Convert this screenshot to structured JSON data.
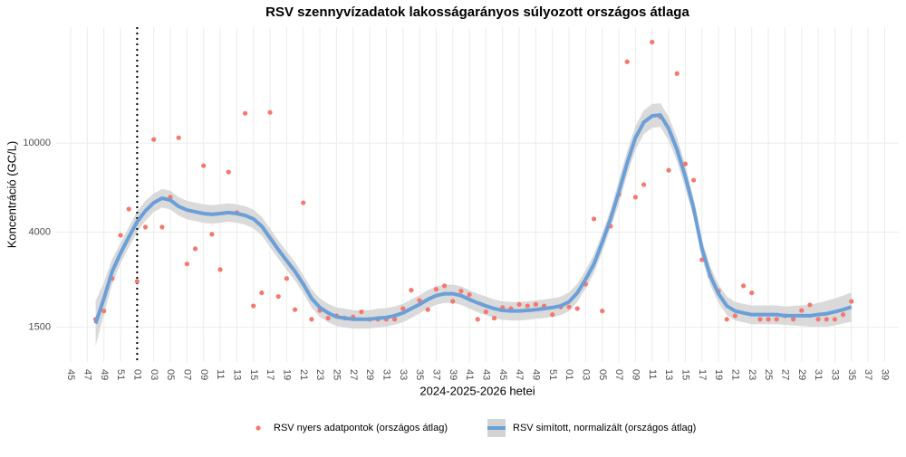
{
  "chart_data": {
    "type": "scatter-smooth",
    "title": "RSV szennyvízadatok lakosságarányos súlyozott országos átlaga",
    "x_label": "2024-2025-2026 hetei",
    "y_label": "Koncentráció (GC/L)",
    "y_scale": "log",
    "grid": true,
    "legend": "bottom",
    "reference_line_x": 8,
    "xlim": [
      -1.75,
      99.7
    ],
    "ylim": [
      1050,
      33000
    ],
    "yticks": [
      1500,
      4000,
      10000
    ],
    "xticks": [
      {
        "value": 0,
        "label": "45"
      },
      {
        "value": 2,
        "label": "47"
      },
      {
        "value": 4,
        "label": "49"
      },
      {
        "value": 6,
        "label": "51"
      },
      {
        "value": 8,
        "label": "01"
      },
      {
        "value": 10,
        "label": "03"
      },
      {
        "value": 12,
        "label": "05"
      },
      {
        "value": 14,
        "label": "07"
      },
      {
        "value": 16,
        "label": "09"
      },
      {
        "value": 18,
        "label": "11"
      },
      {
        "value": 20,
        "label": "13"
      },
      {
        "value": 22,
        "label": "15"
      },
      {
        "value": 24,
        "label": "17"
      },
      {
        "value": 26,
        "label": "19"
      },
      {
        "value": 28,
        "label": "21"
      },
      {
        "value": 30,
        "label": "23"
      },
      {
        "value": 32,
        "label": "25"
      },
      {
        "value": 34,
        "label": "27"
      },
      {
        "value": 36,
        "label": "29"
      },
      {
        "value": 38,
        "label": "31"
      },
      {
        "value": 40,
        "label": "33"
      },
      {
        "value": 42,
        "label": "35"
      },
      {
        "value": 44,
        "label": "37"
      },
      {
        "value": 46,
        "label": "39"
      },
      {
        "value": 48,
        "label": "41"
      },
      {
        "value": 50,
        "label": "43"
      },
      {
        "value": 52,
        "label": "45"
      },
      {
        "value": 54,
        "label": "47"
      },
      {
        "value": 56,
        "label": "49"
      },
      {
        "value": 58,
        "label": "51"
      },
      {
        "value": 60,
        "label": "01"
      },
      {
        "value": 62,
        "label": "03"
      },
      {
        "value": 64,
        "label": "05"
      },
      {
        "value": 66,
        "label": "07"
      },
      {
        "value": 68,
        "label": "09"
      },
      {
        "value": 70,
        "label": "11"
      },
      {
        "value": 72,
        "label": "13"
      },
      {
        "value": 74,
        "label": "15"
      },
      {
        "value": 76,
        "label": "17"
      },
      {
        "value": 78,
        "label": "19"
      },
      {
        "value": 80,
        "label": "21"
      },
      {
        "value": 82,
        "label": "23"
      },
      {
        "value": 84,
        "label": "25"
      },
      {
        "value": 86,
        "label": "27"
      },
      {
        "value": 88,
        "label": "29"
      },
      {
        "value": 90,
        "label": "31"
      },
      {
        "value": 92,
        "label": "33"
      },
      {
        "value": 94,
        "label": "35"
      },
      {
        "value": 96,
        "label": "37"
      },
      {
        "value": 98,
        "label": "39"
      }
    ],
    "x": [
      3,
      4,
      5,
      6,
      7,
      8,
      9,
      10,
      11,
      12,
      13,
      14,
      15,
      16,
      17,
      18,
      19,
      20,
      21,
      22,
      23,
      24,
      25,
      26,
      27,
      28,
      29,
      30,
      31,
      32,
      33,
      34,
      35,
      36,
      37,
      38,
      39,
      40,
      41,
      42,
      43,
      44,
      45,
      46,
      47,
      48,
      49,
      50,
      51,
      52,
      53,
      54,
      55,
      56,
      57,
      58,
      59,
      60,
      61,
      62,
      63,
      64,
      65,
      66,
      67,
      68,
      69,
      70,
      71,
      72,
      73,
      74,
      75,
      76,
      77,
      78,
      79,
      80,
      81,
      82,
      83,
      84,
      85,
      86,
      87,
      88,
      89,
      90,
      91,
      92,
      93,
      94
    ],
    "series": [
      {
        "name": "RSV nyers adatpontok (országos átlag)",
        "color": "#F8766D",
        "values": [
          1630,
          1775,
          2480,
          3870,
          5070,
          2410,
          4210,
          10380,
          4210,
          5730,
          10570,
          2880,
          3370,
          7920,
          3910,
          2720,
          7420,
          4890,
          13590,
          1870,
          2140,
          13720,
          2060,
          2480,
          1800,
          5410,
          1630,
          1785,
          1650,
          1690,
          1650,
          1670,
          1760,
          1630,
          1630,
          1630,
          1630,
          1820,
          2200,
          1980,
          1800,
          2220,
          2300,
          1960,
          2180,
          2100,
          1630,
          1760,
          1650,
          1840,
          1820,
          1900,
          1870,
          1900,
          1870,
          1710,
          1850,
          1850,
          1820,
          2340,
          4580,
          1775,
          4250,
          5890,
          23100,
          5730,
          6520,
          28300,
          13100,
          7560,
          20470,
          8070,
          6830,
          3010,
          2550,
          2180,
          1630,
          1690,
          2300,
          2140,
          1630,
          1630,
          1630,
          1690,
          1630,
          1785,
          1890,
          1630,
          1630,
          1630,
          1710,
          1960
        ]
      },
      {
        "name": "RSV simított, normalizált (országos átlag)",
        "color": "#6A9FD8",
        "band_color": "#d3d3d3",
        "values": [
          1560,
          2020,
          2670,
          3220,
          3800,
          4450,
          4980,
          5410,
          5670,
          5560,
          5210,
          5020,
          4930,
          4840,
          4800,
          4840,
          4890,
          4840,
          4750,
          4580,
          4250,
          3770,
          3340,
          2980,
          2670,
          2340,
          2020,
          1840,
          1740,
          1670,
          1650,
          1630,
          1630,
          1630,
          1650,
          1660,
          1690,
          1740,
          1820,
          1900,
          2000,
          2080,
          2120,
          2120,
          2080,
          2000,
          1930,
          1870,
          1820,
          1785,
          1775,
          1775,
          1785,
          1800,
          1820,
          1840,
          1870,
          1950,
          2140,
          2460,
          2880,
          3600,
          4580,
          6050,
          8150,
          10570,
          12390,
          13220,
          13350,
          11600,
          9370,
          7090,
          5120,
          3370,
          2550,
          2120,
          1870,
          1775,
          1740,
          1710,
          1710,
          1710,
          1710,
          1690,
          1690,
          1690,
          1690,
          1710,
          1725,
          1760,
          1800,
          1850
        ],
        "lower": [
          1240,
          1710,
          2340,
          2900,
          3420,
          4010,
          4490,
          4920,
          5150,
          5050,
          4740,
          4560,
          4480,
          4400,
          4360,
          4400,
          4450,
          4400,
          4320,
          4160,
          3860,
          3430,
          3040,
          2710,
          2430,
          2130,
          1840,
          1670,
          1580,
          1520,
          1500,
          1480,
          1480,
          1480,
          1500,
          1510,
          1540,
          1580,
          1650,
          1730,
          1820,
          1890,
          1930,
          1930,
          1890,
          1820,
          1750,
          1700,
          1650,
          1620,
          1610,
          1610,
          1620,
          1640,
          1650,
          1670,
          1700,
          1770,
          1950,
          2240,
          2620,
          3270,
          4160,
          5350,
          7210,
          9350,
          10960,
          11700,
          11810,
          10270,
          8290,
          6270,
          4650,
          3060,
          2320,
          1930,
          1700,
          1610,
          1580,
          1550,
          1550,
          1550,
          1550,
          1540,
          1530,
          1520,
          1510,
          1510,
          1510,
          1530,
          1560,
          1590
        ],
        "upper": [
          1970,
          2380,
          3040,
          3570,
          4220,
          4940,
          5530,
          5950,
          6240,
          6120,
          5730,
          5520,
          5420,
          5320,
          5280,
          5320,
          5380,
          5320,
          5230,
          5040,
          4680,
          4150,
          3670,
          3280,
          2940,
          2570,
          2220,
          2020,
          1910,
          1840,
          1820,
          1790,
          1790,
          1790,
          1820,
          1830,
          1860,
          1910,
          2000,
          2090,
          2200,
          2290,
          2330,
          2330,
          2290,
          2200,
          2120,
          2060,
          2000,
          1960,
          1950,
          1950,
          1960,
          1980,
          2000,
          2020,
          2060,
          2150,
          2350,
          2710,
          3170,
          3960,
          5040,
          6840,
          9210,
          11940,
          14000,
          14940,
          15090,
          13110,
          10590,
          8010,
          5630,
          3710,
          2810,
          2330,
          2060,
          1950,
          1910,
          1880,
          1880,
          1880,
          1880,
          1860,
          1870,
          1880,
          1890,
          1930,
          1970,
          2020,
          2080,
          2150
        ]
      }
    ]
  }
}
